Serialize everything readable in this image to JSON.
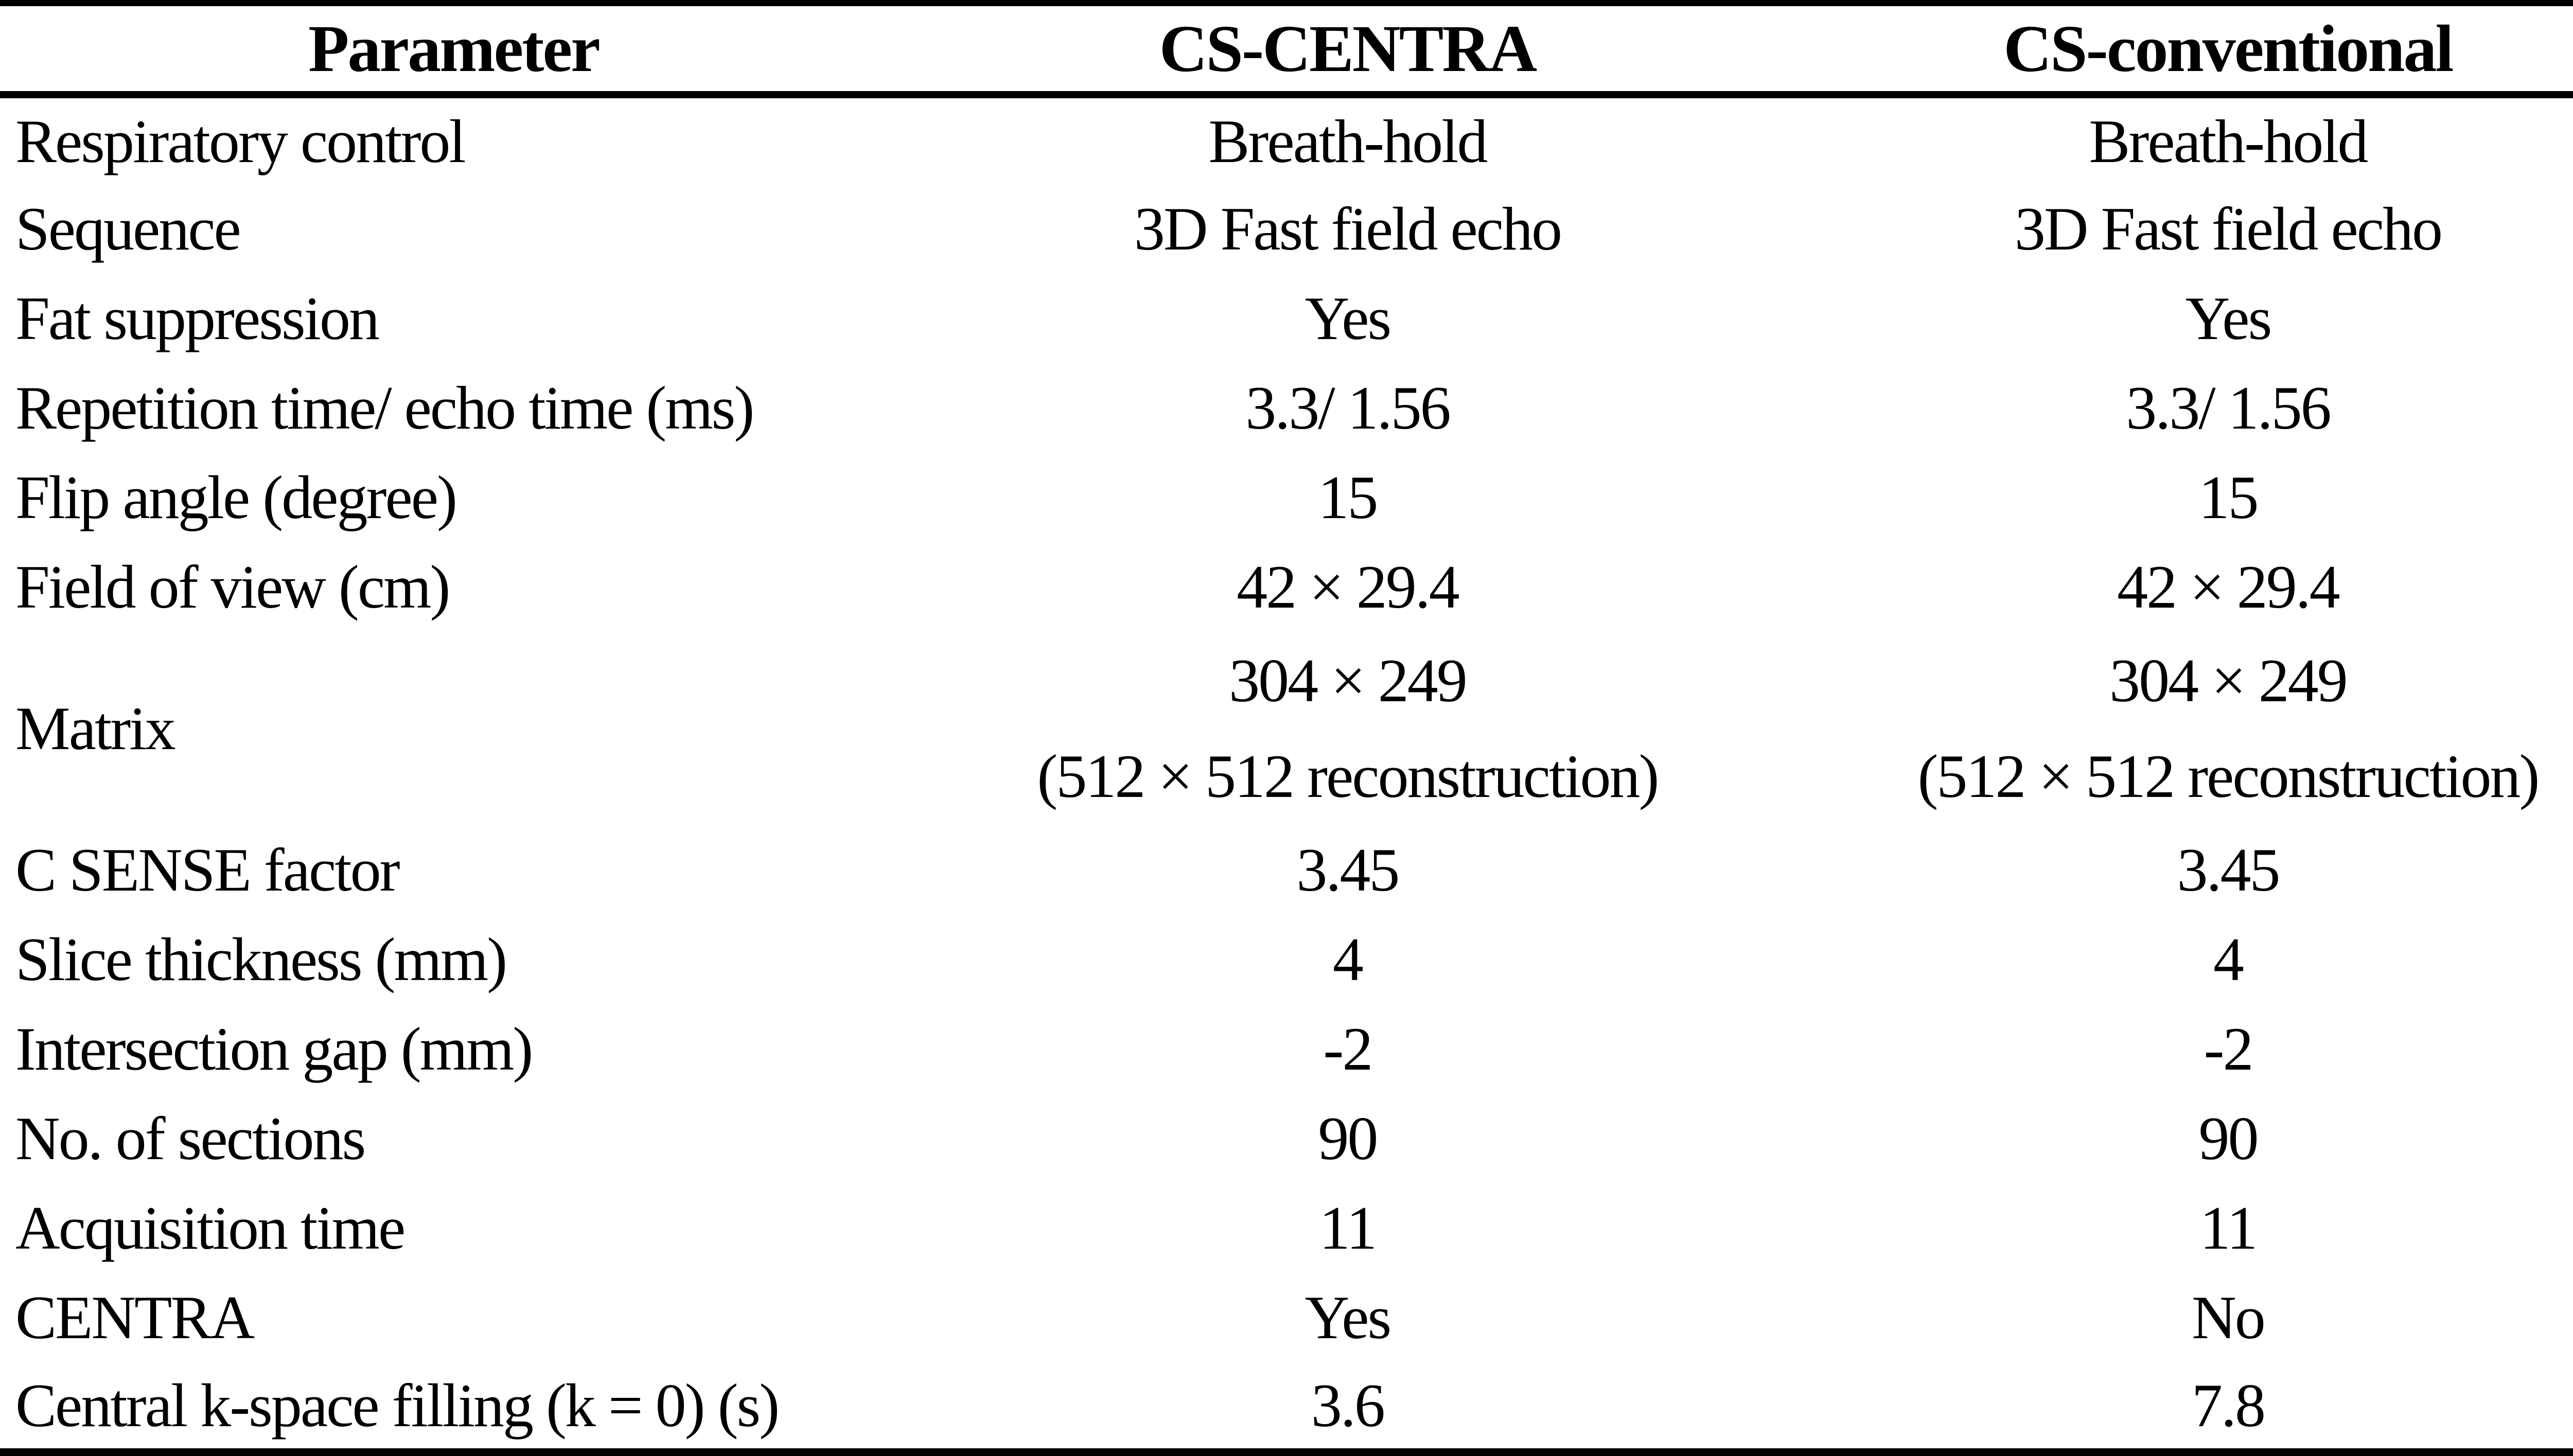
{
  "page": {
    "background": "#ffffff",
    "text_color": "#000000",
    "border_color": "#000000"
  },
  "table": {
    "columns": [
      {
        "label": "Parameter"
      },
      {
        "label": "CS-CENTRA"
      },
      {
        "label": "CS-conventional"
      }
    ],
    "rows": [
      {
        "param": "Respiratory control",
        "cs_centra": "Breath-hold",
        "cs_conventional": "Breath-hold"
      },
      {
        "param": "Sequence",
        "cs_centra": "3D Fast field echo",
        "cs_conventional": "3D Fast field echo"
      },
      {
        "param": "Fat suppression",
        "cs_centra": "Yes",
        "cs_conventional": "Yes"
      },
      {
        "param": "Repetition time/ echo time (ms)",
        "cs_centra": "3.3/ 1.56",
        "cs_conventional": "3.3/ 1.56"
      },
      {
        "param": "Flip angle (degree)",
        "cs_centra": "15",
        "cs_conventional": "15"
      },
      {
        "param": "Field of view (cm)",
        "cs_centra": "42 × 29.4",
        "cs_conventional": "42 × 29.4"
      },
      {
        "param": "Matrix",
        "cs_centra_line1": "304 × 249",
        "cs_centra_line2": "(512 × 512 reconstruction)",
        "cs_conventional_line1": "304 × 249",
        "cs_conventional_line2": "(512 × 512 reconstruction)"
      },
      {
        "param": "C SENSE factor",
        "cs_centra": "3.45",
        "cs_conventional": "3.45"
      },
      {
        "param": "Slice thickness (mm)",
        "cs_centra": "4",
        "cs_conventional": "4"
      },
      {
        "param": "Intersection gap (mm)",
        "cs_centra": "-2",
        "cs_conventional": "-2"
      },
      {
        "param": "No. of sections",
        "cs_centra": "90",
        "cs_conventional": "90"
      },
      {
        "param": "Acquisition time",
        "cs_centra": "11",
        "cs_conventional": "11"
      },
      {
        "param": "CENTRA",
        "cs_centra": "Yes",
        "cs_conventional": "No"
      },
      {
        "param": "Central k-space filling (k = 0) (s)",
        "cs_centra": "3.6",
        "cs_conventional": "7.8"
      }
    ]
  }
}
